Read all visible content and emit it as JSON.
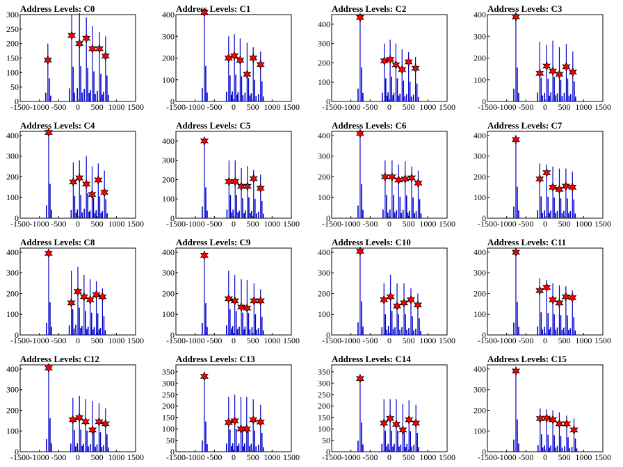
{
  "chart_data": [
    {
      "type": "bar",
      "title": "Address Levels: C0",
      "xlabel": "",
      "ylabel": "",
      "xlim": [
        -1500,
        1500
      ],
      "ylim": [
        0,
        300
      ],
      "xticks": [
        "-1500",
        "-1000",
        "-500",
        "0",
        "500",
        "1000",
        "1500"
      ],
      "yticks": [
        "0",
        "50",
        "100",
        "150",
        "200",
        "250",
        "300"
      ],
      "peaks": [
        {
          "x": -780,
          "spike": 200,
          "star": 143
        },
        {
          "x": -160,
          "spike": 300,
          "star": 228
        },
        {
          "x": 40,
          "spike": 305,
          "star": 200
        },
        {
          "x": 220,
          "spike": 290,
          "star": 218
        },
        {
          "x": 380,
          "spike": 260,
          "star": 182
        },
        {
          "x": 560,
          "spike": 240,
          "star": 182
        },
        {
          "x": 720,
          "spike": 225,
          "star": 157
        }
      ]
    },
    {
      "type": "bar",
      "title": "Address Levels: C1",
      "xlabel": "",
      "ylabel": "",
      "xlim": [
        -1500,
        1500
      ],
      "ylim": [
        0,
        400
      ],
      "xticks": [
        "-1500",
        "-1000",
        "-500",
        "0",
        "500",
        "1000",
        "1500"
      ],
      "yticks": [
        "0",
        "100",
        "200",
        "300",
        "400"
      ],
      "peaks": [
        {
          "x": -760,
          "spike": 410,
          "star": 410
        },
        {
          "x": -130,
          "spike": 300,
          "star": 200
        },
        {
          "x": 20,
          "spike": 310,
          "star": 210
        },
        {
          "x": 170,
          "spike": 290,
          "star": 190
        },
        {
          "x": 350,
          "spike": 270,
          "star": 125
        },
        {
          "x": 510,
          "spike": 250,
          "star": 200
        },
        {
          "x": 700,
          "spike": 230,
          "star": 170
        }
      ]
    },
    {
      "type": "bar",
      "title": "Address Levels: C2",
      "xlabel": "",
      "ylabel": "",
      "xlim": [
        -1500,
        1500
      ],
      "ylim": [
        0,
        450
      ],
      "xticks": [
        "-1500",
        "-1000",
        "-500",
        "0",
        "500",
        "1000",
        "1500"
      ],
      "yticks": [
        "0",
        "100",
        "200",
        "300",
        "400"
      ],
      "peaks": [
        {
          "x": -760,
          "spike": 440,
          "star": 435
        },
        {
          "x": -130,
          "spike": 300,
          "star": 210
        },
        {
          "x": 20,
          "spike": 320,
          "star": 218
        },
        {
          "x": 170,
          "spike": 300,
          "star": 190
        },
        {
          "x": 330,
          "spike": 270,
          "star": 165
        },
        {
          "x": 500,
          "spike": 255,
          "star": 205
        },
        {
          "x": 680,
          "spike": 230,
          "star": 172
        }
      ]
    },
    {
      "type": "bar",
      "title": "Address Levels: C3",
      "xlabel": "",
      "ylabel": "",
      "xlim": [
        -1500,
        1500
      ],
      "ylim": [
        0,
        400
      ],
      "xticks": [
        "-1500",
        "-1000",
        "-500",
        "0",
        "500",
        "1000",
        "1500"
      ],
      "yticks": [
        "0",
        "100",
        "200",
        "300",
        "400"
      ],
      "peaks": [
        {
          "x": -760,
          "spike": 390,
          "star": 390
        },
        {
          "x": -140,
          "spike": 275,
          "star": 130
        },
        {
          "x": 40,
          "spike": 260,
          "star": 163
        },
        {
          "x": 200,
          "spike": 280,
          "star": 140
        },
        {
          "x": 370,
          "spike": 250,
          "star": 125
        },
        {
          "x": 550,
          "spike": 265,
          "star": 160
        },
        {
          "x": 720,
          "spike": 230,
          "star": 135
        }
      ]
    },
    {
      "type": "bar",
      "title": "Address Levels: C4",
      "xlabel": "",
      "ylabel": "",
      "xlim": [
        -1500,
        1500
      ],
      "ylim": [
        0,
        420
      ],
      "xticks": [
        "-1500",
        "-1000",
        "-500",
        "0",
        "500",
        "1000",
        "1500"
      ],
      "yticks": [
        "0",
        "100",
        "200",
        "300",
        "400"
      ],
      "peaks": [
        {
          "x": -760,
          "spike": 415,
          "star": 415
        },
        {
          "x": -120,
          "spike": 270,
          "star": 175
        },
        {
          "x": 40,
          "spike": 280,
          "star": 195
        },
        {
          "x": 220,
          "spike": 300,
          "star": 165
        },
        {
          "x": 370,
          "spike": 250,
          "star": 115
        },
        {
          "x": 530,
          "spike": 265,
          "star": 185
        },
        {
          "x": 690,
          "spike": 230,
          "star": 125
        }
      ]
    },
    {
      "type": "bar",
      "title": "Address Levels: C5",
      "xlabel": "",
      "ylabel": "",
      "xlim": [
        -1500,
        1500
      ],
      "ylim": [
        0,
        450
      ],
      "xticks": [
        "-1500",
        "-1000",
        "-500",
        "0",
        "500",
        "1000",
        "1500"
      ],
      "yticks": [
        "0",
        "100",
        "200",
        "300",
        "400"
      ],
      "peaks": [
        {
          "x": -760,
          "spike": 400,
          "star": 400
        },
        {
          "x": -120,
          "spike": 300,
          "star": 190
        },
        {
          "x": 40,
          "spike": 300,
          "star": 190
        },
        {
          "x": 200,
          "spike": 260,
          "star": 165
        },
        {
          "x": 360,
          "spike": 270,
          "star": 165
        },
        {
          "x": 520,
          "spike": 250,
          "star": 205
        },
        {
          "x": 700,
          "spike": 225,
          "star": 155
        }
      ]
    },
    {
      "type": "bar",
      "title": "Address Levels: C6",
      "xlabel": "",
      "ylabel": "",
      "xlim": [
        -1500,
        1500
      ],
      "ylim": [
        0,
        420
      ],
      "xticks": [
        "-1500",
        "-1000",
        "-500",
        "0",
        "500",
        "1000",
        "1500"
      ],
      "yticks": [
        "0",
        "100",
        "200",
        "300",
        "400"
      ],
      "peaks": [
        {
          "x": -760,
          "spike": 410,
          "star": 410
        },
        {
          "x": -110,
          "spike": 280,
          "star": 200
        },
        {
          "x": 70,
          "spike": 280,
          "star": 200
        },
        {
          "x": 240,
          "spike": 260,
          "star": 185
        },
        {
          "x": 410,
          "spike": 275,
          "star": 190
        },
        {
          "x": 580,
          "spike": 250,
          "star": 195
        },
        {
          "x": 750,
          "spike": 230,
          "star": 170
        }
      ]
    },
    {
      "type": "bar",
      "title": "Address Levels: C7",
      "xlabel": "",
      "ylabel": "",
      "xlim": [
        -1500,
        1500
      ],
      "ylim": [
        0,
        420
      ],
      "xticks": [
        "-1500",
        "-1000",
        "-500",
        "0",
        "500",
        "1000",
        "1500"
      ],
      "yticks": [
        "0",
        "100",
        "200",
        "300",
        "400"
      ],
      "peaks": [
        {
          "x": -760,
          "spike": 380,
          "star": 380
        },
        {
          "x": -140,
          "spike": 265,
          "star": 190
        },
        {
          "x": 40,
          "spike": 260,
          "star": 220
        },
        {
          "x": 200,
          "spike": 250,
          "star": 150
        },
        {
          "x": 370,
          "spike": 240,
          "star": 140
        },
        {
          "x": 540,
          "spike": 240,
          "star": 155
        },
        {
          "x": 710,
          "spike": 225,
          "star": 150
        }
      ]
    },
    {
      "type": "bar",
      "title": "Address Levels: C8",
      "xlabel": "",
      "ylabel": "",
      "xlim": [
        -1500,
        1500
      ],
      "ylim": [
        0,
        420
      ],
      "xticks": [
        "-1500",
        "-1000",
        "-500",
        "0",
        "500",
        "1000",
        "1500"
      ],
      "yticks": [
        "0",
        "100",
        "200",
        "300",
        "400"
      ],
      "peaks": [
        {
          "x": -760,
          "spike": 395,
          "star": 395
        },
        {
          "x": -170,
          "spike": 310,
          "star": 155
        },
        {
          "x": 0,
          "spike": 330,
          "star": 210
        },
        {
          "x": 160,
          "spike": 290,
          "star": 185
        },
        {
          "x": 320,
          "spike": 270,
          "star": 170
        },
        {
          "x": 480,
          "spike": 260,
          "star": 195
        },
        {
          "x": 640,
          "spike": 225,
          "star": 185
        }
      ]
    },
    {
      "type": "bar",
      "title": "Address Levels: C9",
      "xlabel": "",
      "ylabel": "",
      "xlim": [
        -1500,
        1500
      ],
      "ylim": [
        0,
        420
      ],
      "xticks": [
        "-1500",
        "-1000",
        "-500",
        "0",
        "500",
        "1000",
        "1500"
      ],
      "yticks": [
        "0",
        "100",
        "200",
        "300",
        "400"
      ],
      "peaks": [
        {
          "x": -760,
          "spike": 385,
          "star": 385
        },
        {
          "x": -130,
          "spike": 310,
          "star": 175
        },
        {
          "x": 30,
          "spike": 290,
          "star": 165
        },
        {
          "x": 200,
          "spike": 270,
          "star": 135
        },
        {
          "x": 350,
          "spike": 265,
          "star": 130
        },
        {
          "x": 530,
          "spike": 250,
          "star": 165
        },
        {
          "x": 700,
          "spike": 220,
          "star": 165
        }
      ]
    },
    {
      "type": "bar",
      "title": "Address Levels: C10",
      "xlabel": "",
      "ylabel": "",
      "xlim": [
        -1500,
        1500
      ],
      "ylim": [
        0,
        420
      ],
      "xticks": [
        "-1500",
        "-1000",
        "-500",
        "0",
        "500",
        "1000",
        "1500"
      ],
      "yticks": [
        "0",
        "100",
        "200",
        "300",
        "400"
      ],
      "peaks": [
        {
          "x": -760,
          "spike": 405,
          "star": 405
        },
        {
          "x": -140,
          "spike": 250,
          "star": 170
        },
        {
          "x": 30,
          "spike": 290,
          "star": 185
        },
        {
          "x": 200,
          "spike": 250,
          "star": 140
        },
        {
          "x": 380,
          "spike": 250,
          "star": 155
        },
        {
          "x": 560,
          "spike": 225,
          "star": 170
        },
        {
          "x": 740,
          "spike": 200,
          "star": 145
        }
      ]
    },
    {
      "type": "bar",
      "title": "Address Levels: C11",
      "xlabel": "",
      "ylabel": "",
      "xlim": [
        -1500,
        1500
      ],
      "ylim": [
        0,
        420
      ],
      "xticks": [
        "-1500",
        "-1000",
        "-500",
        "0",
        "500",
        "1000",
        "1500"
      ],
      "yticks": [
        "0",
        "100",
        "200",
        "300",
        "400"
      ],
      "peaks": [
        {
          "x": -760,
          "spike": 400,
          "star": 400
        },
        {
          "x": -140,
          "spike": 275,
          "star": 215
        },
        {
          "x": 40,
          "spike": 265,
          "star": 230
        },
        {
          "x": 200,
          "spike": 250,
          "star": 170
        },
        {
          "x": 370,
          "spike": 240,
          "star": 155
        },
        {
          "x": 540,
          "spike": 235,
          "star": 185
        },
        {
          "x": 710,
          "spike": 215,
          "star": 180
        }
      ]
    },
    {
      "type": "bar",
      "title": "Address Levels: C12",
      "xlabel": "",
      "ylabel": "",
      "xlim": [
        -1500,
        1500
      ],
      "ylim": [
        0,
        420
      ],
      "xticks": [
        "-1500",
        "-1000",
        "-500",
        "0",
        "500",
        "1000",
        "1500"
      ],
      "yticks": [
        "0",
        "100",
        "200",
        "300",
        "400"
      ],
      "peaks": [
        {
          "x": -760,
          "spike": 405,
          "star": 405
        },
        {
          "x": -130,
          "spike": 260,
          "star": 155
        },
        {
          "x": 40,
          "spike": 270,
          "star": 165
        },
        {
          "x": 200,
          "spike": 255,
          "star": 145
        },
        {
          "x": 380,
          "spike": 245,
          "star": 105
        },
        {
          "x": 550,
          "spike": 235,
          "star": 145
        },
        {
          "x": 720,
          "spike": 210,
          "star": 135
        }
      ]
    },
    {
      "type": "bar",
      "title": "Address Levels: C13",
      "xlabel": "",
      "ylabel": "",
      "xlim": [
        -1500,
        1500
      ],
      "ylim": [
        0,
        380
      ],
      "xticks": [
        "-1500",
        "-1000",
        "-500",
        "0",
        "500",
        "1000",
        "1500"
      ],
      "yticks": [
        "0",
        "50",
        "100",
        "150",
        "200",
        "250",
        "300",
        "350"
      ],
      "peaks": [
        {
          "x": -760,
          "spike": 330,
          "star": 330
        },
        {
          "x": -130,
          "spike": 240,
          "star": 128
        },
        {
          "x": 30,
          "spike": 250,
          "star": 135
        },
        {
          "x": 190,
          "spike": 240,
          "star": 100
        },
        {
          "x": 340,
          "spike": 240,
          "star": 100
        },
        {
          "x": 510,
          "spike": 230,
          "star": 140
        },
        {
          "x": 700,
          "spike": 205,
          "star": 130
        }
      ]
    },
    {
      "type": "bar",
      "title": "Address Levels: C14",
      "xlabel": "",
      "ylabel": "",
      "xlim": [
        -1500,
        1500
      ],
      "ylim": [
        0,
        380
      ],
      "xticks": [
        "-1500",
        "-1000",
        "-500",
        "0",
        "500",
        "1000",
        "1500"
      ],
      "yticks": [
        "0",
        "50",
        "100",
        "150",
        "200",
        "250",
        "300",
        "350"
      ],
      "peaks": [
        {
          "x": -760,
          "spike": 320,
          "star": 320
        },
        {
          "x": -140,
          "spike": 230,
          "star": 125
        },
        {
          "x": 20,
          "spike": 230,
          "star": 145
        },
        {
          "x": 180,
          "spike": 230,
          "star": 120
        },
        {
          "x": 350,
          "spike": 210,
          "star": 95
        },
        {
          "x": 510,
          "spike": 225,
          "star": 140
        },
        {
          "x": 690,
          "spike": 205,
          "star": 125
        }
      ]
    },
    {
      "type": "bar",
      "title": "Address Levels: C15",
      "xlabel": "",
      "ylabel": "",
      "xlim": [
        -1500,
        1500
      ],
      "ylim": [
        0,
        420
      ],
      "xticks": [
        "-1500",
        "-1000",
        "-500",
        "0",
        "500",
        "1000",
        "1500"
      ],
      "yticks": [
        "0",
        "100",
        "200",
        "300",
        "400"
      ],
      "peaks": [
        {
          "x": -760,
          "spike": 390,
          "star": 390
        },
        {
          "x": -130,
          "spike": 210,
          "star": 160
        },
        {
          "x": 40,
          "spike": 205,
          "star": 162
        },
        {
          "x": 200,
          "spike": 200,
          "star": 155
        },
        {
          "x": 370,
          "spike": 190,
          "star": 135
        },
        {
          "x": 560,
          "spike": 175,
          "star": 135
        },
        {
          "x": 750,
          "spike": 160,
          "star": 105
        }
      ]
    }
  ],
  "colors": {
    "spike": "#0000cc",
    "star": "#ff0000",
    "star_edge": "#000000",
    "axis": "#000000"
  }
}
